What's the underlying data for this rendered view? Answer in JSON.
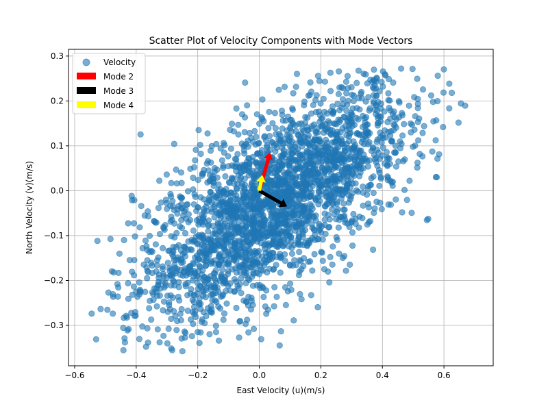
{
  "chart_data": {
    "type": "scatter",
    "title": "Scatter Plot of Velocity Components with Mode Vectors",
    "xlabel": "East Velocity (u)(m/s)",
    "ylabel": "North Velocity (v)(m/s)",
    "xlim": [
      -0.62,
      0.76
    ],
    "ylim": [
      -0.39,
      0.315
    ],
    "xticks": [
      -0.6,
      -0.4,
      -0.2,
      0.0,
      0.2,
      0.4,
      0.6
    ],
    "xtick_labels": [
      "−0.6",
      "−0.4",
      "−0.2",
      "0.0",
      "0.2",
      "0.4",
      "0.6"
    ],
    "yticks": [
      -0.3,
      -0.2,
      -0.1,
      0.0,
      0.1,
      0.2,
      0.3
    ],
    "ytick_labels": [
      "−0.3",
      "−0.2",
      "−0.1",
      "0.0",
      "0.1",
      "0.2",
      "0.3"
    ],
    "grid": true,
    "legend_position": "top-left",
    "series": [
      {
        "name": "Velocity",
        "kind": "scatter",
        "color": "#1f77b4",
        "alpha": 0.6,
        "cloud": {
          "center": [
            0.05,
            -0.03
          ],
          "slope": 0.42,
          "u_range": [
            -0.56,
            0.7
          ],
          "v_spread": 0.095,
          "v_range": [
            -0.36,
            0.28
          ],
          "count": 2600
        }
      },
      {
        "name": "Mode 2",
        "kind": "arrow",
        "color": "#ff0000",
        "origin": [
          0.0,
          0.0
        ],
        "vector": [
          0.035,
          0.085
        ]
      },
      {
        "name": "Mode 3",
        "kind": "arrow",
        "color": "#000000",
        "origin": [
          0.0,
          0.0
        ],
        "vector": [
          0.09,
          -0.035
        ]
      },
      {
        "name": "Mode 4",
        "kind": "arrow",
        "color": "#ffff00",
        "origin": [
          0.0,
          0.0
        ],
        "vector": [
          0.01,
          0.035
        ]
      }
    ]
  }
}
